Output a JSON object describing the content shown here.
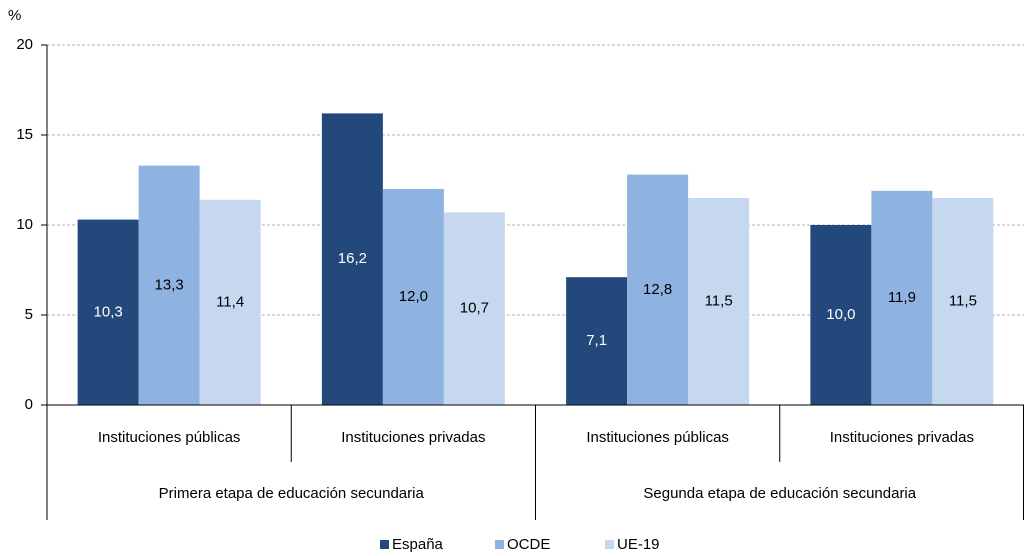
{
  "chart_data": {
    "type": "bar",
    "y_label": "%",
    "categories": [
      "Instituciones públicas",
      "Instituciones privadas",
      "Instituciones públicas",
      "Instituciones privadas"
    ],
    "category_groups": [
      "Primera etapa de educación secundaria",
      "Segunda etapa de educación secundaria"
    ],
    "series": [
      {
        "name": "España",
        "color": "#23487b",
        "values": [
          10.3,
          16.2,
          7.1,
          10.0
        ],
        "value_labels": [
          "10,3",
          "16,2",
          "7,1",
          "10,0"
        ]
      },
      {
        "name": "OCDE",
        "color": "#8eb3e0",
        "values": [
          13.3,
          12.0,
          12.8,
          11.9
        ],
        "value_labels": [
          "13,3",
          "12,0",
          "12,8",
          "11,9"
        ]
      },
      {
        "name": "UE-19",
        "color": "#c6d8f0",
        "values": [
          11.4,
          10.7,
          11.5,
          11.5
        ],
        "value_labels": [
          "11,4",
          "10,7",
          "11,5",
          "11,5"
        ]
      }
    ],
    "ylim": [
      0,
      20
    ],
    "yticks": [
      0,
      5,
      10,
      15,
      20
    ],
    "grid": true
  }
}
